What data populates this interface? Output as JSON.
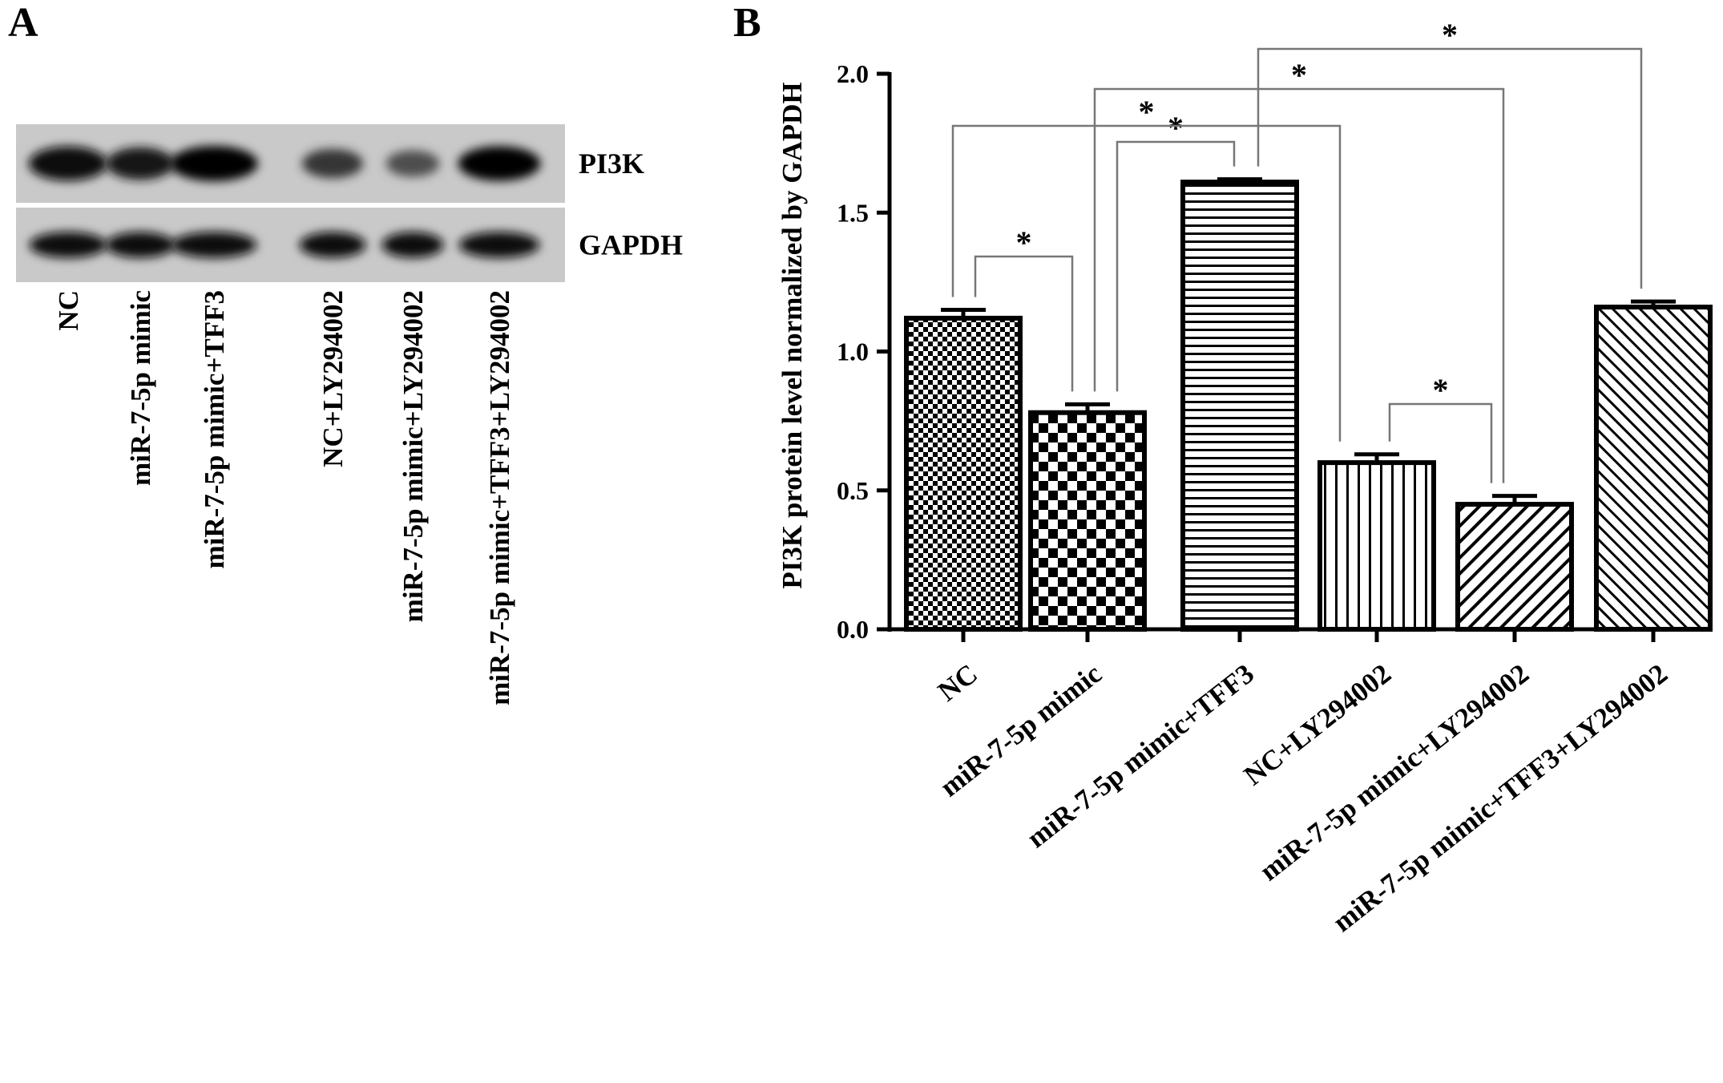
{
  "panel_a": {
    "letter": "A",
    "blot_rows": [
      {
        "label": "PI3K",
        "intensities": [
          0.95,
          0.82,
          1.0,
          0.62,
          0.45,
          0.97
        ]
      },
      {
        "label": "GAPDH",
        "intensities": [
          0.9,
          0.88,
          0.9,
          0.88,
          0.88,
          0.9
        ]
      }
    ],
    "lanes": [
      "NC",
      "miR-7-5p mimic",
      "miR-7-5p mimic+TFF3",
      "NC+LY294002",
      "miR-7-5p mimic+LY294002",
      "miR-7-5p mimic+TFF3+LY294002"
    ]
  },
  "panel_b": {
    "letter": "B",
    "comparison_symbol": "*"
  },
  "chart_data": {
    "type": "bar",
    "title": "",
    "xlabel": "",
    "ylabel": "PI3K protein level normalized by GAPDH",
    "ylim": [
      0,
      2.0
    ],
    "yticks": [
      "0.0",
      "0.5",
      "1.0",
      "1.5",
      "2.0"
    ],
    "grid": false,
    "legend": "none",
    "categories": [
      "NC",
      "miR-7-5p mimic",
      "miR-7-5p mimic+TFF3",
      "NC+LY294002",
      "miR-7-5p mimic+LY294002",
      "miR-7-5p mimic+TFF3+LY294002"
    ],
    "values": [
      1.12,
      0.78,
      1.61,
      0.6,
      0.45,
      1.16
    ],
    "errors": [
      0.03,
      0.03,
      0.01,
      0.03,
      0.03,
      0.02
    ],
    "patterns": [
      "fine-checker",
      "checker",
      "horizontal-lines",
      "vertical-lines",
      "diagonal-lines",
      "diagonal-lines-fine"
    ],
    "significance": [
      {
        "from": 0,
        "to": 1,
        "label": "*"
      },
      {
        "from": 1,
        "to": 2,
        "label": "*"
      },
      {
        "from": 0,
        "to": 3,
        "label": "*"
      },
      {
        "from": 1,
        "to": 4,
        "label": "*"
      },
      {
        "from": 2,
        "to": 5,
        "label": "*"
      },
      {
        "from": 3,
        "to": 4,
        "label": "*"
      }
    ]
  }
}
